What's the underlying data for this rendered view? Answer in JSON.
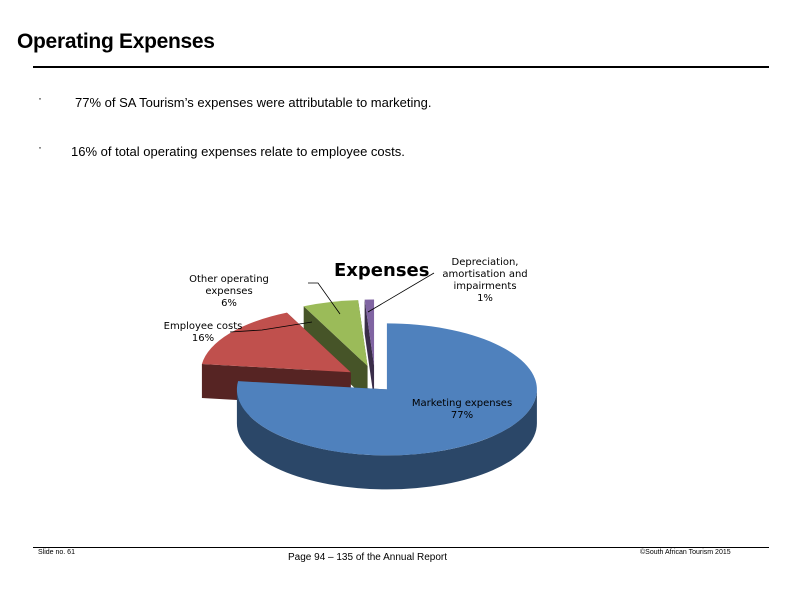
{
  "page": {
    "title": "Operating Expenses",
    "bullets": [
      {
        "symbol": "·",
        "text": "77% of SA Tourism’s expenses were attributable to marketing."
      },
      {
        "symbol": "·",
        "text": "16% of total operating expenses relate to employee costs."
      }
    ]
  },
  "footer": {
    "slide_no": "Slide no. 61",
    "center": "Page 94 – 135 of the Annual Report",
    "copyright": "©South African Tourism 2015"
  },
  "chart_data": {
    "type": "pie",
    "title": "Expenses",
    "style": "3d-exploded",
    "slices": [
      {
        "name": "Marketing expenses",
        "value": 77,
        "label": "77%",
        "color": "#4f81bd"
      },
      {
        "name": "Employee costs",
        "value": 16,
        "label": "16%",
        "color": "#c0504d"
      },
      {
        "name": "Other operating expenses",
        "value": 6,
        "label": "6%",
        "color": "#9bbb59"
      },
      {
        "name": "Depreciation, amortisation and impairments",
        "value": 1,
        "label": "1%",
        "color": "#8064a2"
      }
    ]
  }
}
